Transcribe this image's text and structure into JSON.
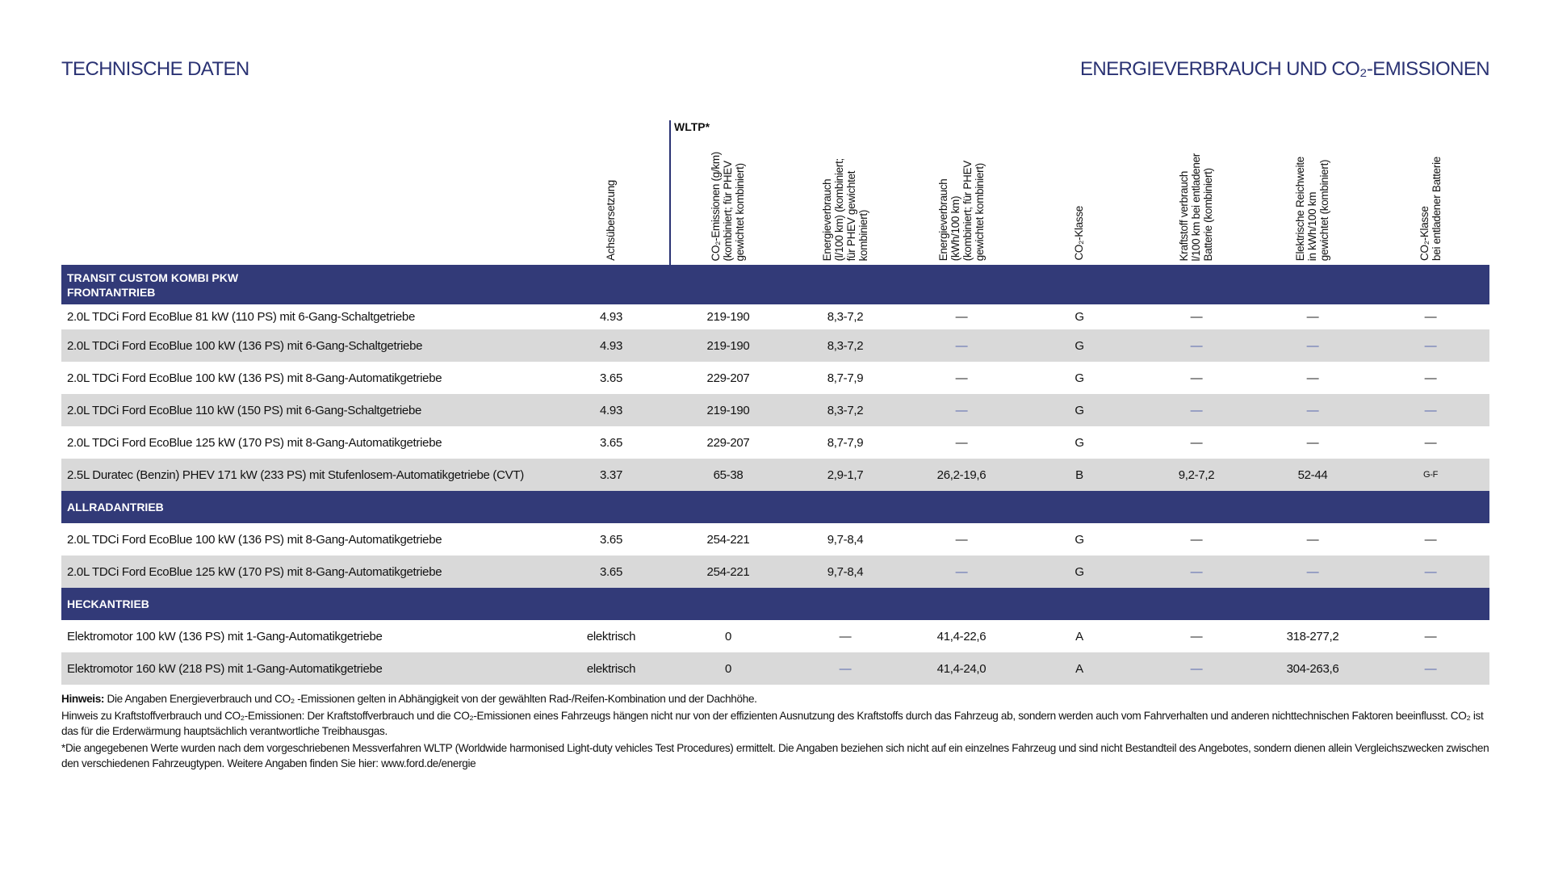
{
  "header": {
    "left_title": "TECHNISCHE DATEN",
    "right_title": "ENERGIEVERBRAUCH UND CO₂-EMISSIONEN",
    "wltp_label": "WLTP*"
  },
  "columns": [
    "Achsübersetzung",
    "CO₂-Emissionen (g/km)\n(kombiniert; für PHEV\ngewichtet kombiniert)",
    "Energieverbrauch\n(l/100 km) (kombiniert;\nfür PHEV gewichtet\nkombiniert)",
    "Energieverbrauch\n(kWh/100 km)\n(kombiniert; für PHEV\ngewichtet kombiniert)",
    "CO₂-Klasse",
    "Kraftstoff verbrauch\nl/100 km bei entladener\nBatterie (kombiniert)",
    "Elektrische Reichweite\nin kWh/100 km\ngewichtet (kombiniert)",
    "CO₂-Klasse\nbei entladener Batterie"
  ],
  "sections": [
    {
      "title": "TRANSIT CUSTOM KOMBI PKW\nFRONTANTRIEB",
      "rows": [
        {
          "name": "2.0L TDCi Ford EcoBlue 81 kW (110 PS) mit 6-Gang-Schaltgetriebe",
          "values": [
            "4.93",
            "219-190",
            "8,3-7,2",
            "—",
            "G",
            "—",
            "—",
            "—"
          ]
        },
        {
          "name": "2.0L TDCi Ford EcoBlue 100 kW (136 PS) mit 6-Gang-Schaltgetriebe",
          "values": [
            "4.93",
            "219-190",
            "8,3-7,2",
            "—",
            "G",
            "—",
            "—",
            "—"
          ]
        },
        {
          "name": "2.0L TDCi Ford EcoBlue 100 kW (136 PS) mit 8-Gang-Automatikgetriebe",
          "values": [
            "3.65",
            "229-207",
            "8,7-7,9",
            "—",
            "G",
            "—",
            "—",
            "—"
          ]
        },
        {
          "name": "2.0L TDCi Ford EcoBlue 110 kW (150 PS) mit 6-Gang-Schaltgetriebe",
          "values": [
            "4.93",
            "219-190",
            "8,3-7,2",
            "—",
            "G",
            "—",
            "—",
            "—"
          ]
        },
        {
          "name": "2.0L TDCi Ford EcoBlue 125 kW (170 PS) mit 8-Gang-Automatikgetriebe",
          "values": [
            "3.65",
            "229-207",
            "8,7-7,9",
            "—",
            "G",
            "—",
            "—",
            "—"
          ]
        },
        {
          "name": "2.5L Duratec (Benzin) PHEV 171 kW (233 PS) mit Stufenlosem-Automatikgetriebe (CVT)",
          "values": [
            "3.37",
            "65-38",
            "2,9-1,7",
            "26,2-19,6",
            "B",
            "9,2-7,2",
            "52-44",
            "G-F"
          ]
        }
      ]
    },
    {
      "title": "ALLRADANTRIEB",
      "rows": [
        {
          "name": "2.0L TDCi Ford EcoBlue 100 kW (136 PS) mit 8-Gang-Automatikgetriebe",
          "values": [
            "3.65",
            "254-221",
            "9,7-8,4",
            "—",
            "G",
            "—",
            "—",
            "—"
          ]
        },
        {
          "name": "2.0L TDCi Ford EcoBlue 125 kW (170 PS) mit 8-Gang-Automatikgetriebe",
          "values": [
            "3.65",
            "254-221",
            "9,7-8,4",
            "—",
            "G",
            "—",
            "—",
            "—"
          ]
        }
      ]
    },
    {
      "title": "HECKANTRIEB",
      "rows": [
        {
          "name": "Elektromotor 100 kW (136 PS) mit 1-Gang-Automatikgetriebe",
          "values": [
            "elektrisch",
            "0",
            "—",
            "41,4-22,6",
            "A",
            "—",
            "318-277,2",
            "—"
          ]
        },
        {
          "name": "Elektromotor 160 kW (218 PS) mit 1-Gang-Automatikgetriebe",
          "values": [
            "elektrisch",
            "0",
            "—",
            "41,4-24,0",
            "A",
            "—",
            "304-263,6",
            "—"
          ]
        }
      ]
    }
  ],
  "notes": {
    "hinweis_label": "Hinweis:",
    "hinweis_text": " Die Angaben Energieverbrauch und CO₂ -Emissionen gelten in Abhängigkeit von der gewählten Rad-/Reifen-Kombination und der Dachhöhe.",
    "kraftstoff": "Hinweis zu Kraftstoffverbrauch und CO₂-Emissionen: Der Kraftstoffverbrauch und die CO₂-Emissionen eines Fahrzeugs hängen nicht nur von der effizienten Ausnutzung des Kraftstoffs durch das Fahrzeug ab, sondern werden auch vom Fahrverhalten und anderen nichttechnischen Faktoren beeinflusst. CO₂ ist das für die Erderwärmung hauptsächlich verantwortliche Treibhausgas.",
    "wltp": "*Die angegebenen Werte wurden nach dem vorgeschriebenen Messverfahren WLTP (Worldwide harmonised Light-duty vehicles Test Procedures) ermittelt. Die Angaben beziehen sich nicht auf ein einzelnes Fahrzeug und sind nicht Bestandteil des Angebotes, sondern dienen allein Vergleichszwecken zwischen den verschiedenen Fahrzeugtypen. Weitere Angaben finden Sie hier: www.ford.de/energie"
  },
  "colors": {
    "navy": "#323a78",
    "row_grey": "#d9d9d9",
    "title_blue": "#2a3273",
    "grey_row_dash": "#5668ad"
  }
}
